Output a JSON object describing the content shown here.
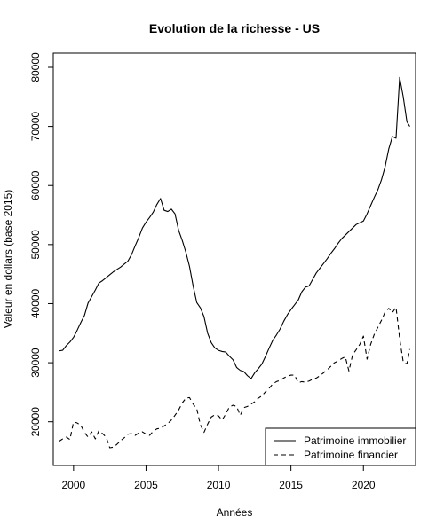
{
  "chart_data": {
    "type": "line",
    "title": "Evolution de la richesse -  US",
    "xlabel": "Années",
    "ylabel": "Valeur en dollars (base 2015)",
    "xlim": [
      1999,
      2023.2
    ],
    "ylim": [
      15000,
      80000
    ],
    "x_ticks": [
      2000,
      2005,
      2010,
      2015,
      2020
    ],
    "y_ticks": [
      20000,
      30000,
      40000,
      50000,
      60000,
      70000,
      80000
    ],
    "grid": false,
    "legend_position": "bottom-right",
    "series": [
      {
        "name": "Patrimoine immobilier",
        "style": "solid",
        "color": "#000000",
        "points": [
          [
            1999.0,
            32000
          ],
          [
            1999.25,
            32100
          ],
          [
            1999.5,
            32900
          ],
          [
            1999.75,
            33500
          ],
          [
            2000.0,
            34300
          ],
          [
            2000.25,
            35500
          ],
          [
            2000.5,
            36800
          ],
          [
            2000.75,
            38000
          ],
          [
            2001.0,
            40100
          ],
          [
            2001.25,
            41200
          ],
          [
            2001.5,
            42300
          ],
          [
            2001.75,
            43500
          ],
          [
            2002.0,
            43900
          ],
          [
            2002.25,
            44400
          ],
          [
            2002.5,
            44900
          ],
          [
            2002.75,
            45400
          ],
          [
            2003.0,
            45800
          ],
          [
            2003.25,
            46200
          ],
          [
            2003.5,
            46700
          ],
          [
            2003.75,
            47200
          ],
          [
            2004.0,
            48300
          ],
          [
            2004.25,
            49800
          ],
          [
            2004.5,
            51200
          ],
          [
            2004.75,
            52800
          ],
          [
            2005.0,
            53800
          ],
          [
            2005.25,
            54600
          ],
          [
            2005.5,
            55500
          ],
          [
            2005.75,
            56800
          ],
          [
            2006.0,
            57800
          ],
          [
            2006.25,
            55800
          ],
          [
            2006.5,
            55600
          ],
          [
            2006.75,
            56000
          ],
          [
            2007.0,
            55200
          ],
          [
            2007.25,
            52400
          ],
          [
            2007.5,
            50700
          ],
          [
            2007.75,
            48700
          ],
          [
            2008.0,
            46300
          ],
          [
            2008.25,
            43000
          ],
          [
            2008.5,
            40200
          ],
          [
            2008.75,
            39300
          ],
          [
            2009.0,
            37800
          ],
          [
            2009.25,
            35000
          ],
          [
            2009.5,
            33400
          ],
          [
            2009.75,
            32500
          ],
          [
            2010.0,
            32100
          ],
          [
            2010.25,
            31900
          ],
          [
            2010.5,
            31800
          ],
          [
            2010.75,
            31100
          ],
          [
            2011.0,
            30500
          ],
          [
            2011.25,
            29200
          ],
          [
            2011.5,
            28700
          ],
          [
            2011.75,
            28500
          ],
          [
            2012.0,
            27800
          ],
          [
            2012.25,
            27300
          ],
          [
            2012.5,
            28300
          ],
          [
            2012.75,
            29000
          ],
          [
            2013.0,
            29800
          ],
          [
            2013.25,
            31100
          ],
          [
            2013.5,
            32500
          ],
          [
            2013.75,
            33800
          ],
          [
            2014.0,
            34700
          ],
          [
            2014.25,
            35700
          ],
          [
            2014.5,
            37000
          ],
          [
            2014.75,
            38100
          ],
          [
            2015.0,
            39000
          ],
          [
            2015.25,
            39800
          ],
          [
            2015.5,
            40600
          ],
          [
            2015.75,
            42000
          ],
          [
            2016.0,
            42800
          ],
          [
            2016.25,
            43000
          ],
          [
            2016.5,
            44100
          ],
          [
            2016.75,
            45200
          ],
          [
            2017.0,
            46000
          ],
          [
            2017.25,
            46800
          ],
          [
            2017.5,
            47600
          ],
          [
            2017.75,
            48500
          ],
          [
            2018.0,
            49300
          ],
          [
            2018.25,
            50200
          ],
          [
            2018.5,
            51000
          ],
          [
            2018.75,
            51600
          ],
          [
            2019.0,
            52200
          ],
          [
            2019.25,
            52800
          ],
          [
            2019.5,
            53400
          ],
          [
            2019.75,
            53700
          ],
          [
            2020.0,
            54000
          ],
          [
            2020.25,
            55200
          ],
          [
            2020.5,
            56600
          ],
          [
            2020.75,
            58000
          ],
          [
            2021.0,
            59300
          ],
          [
            2021.25,
            61000
          ],
          [
            2021.5,
            63200
          ],
          [
            2021.75,
            66200
          ],
          [
            2022.0,
            68300
          ],
          [
            2022.25,
            68000
          ],
          [
            2022.5,
            78300
          ],
          [
            2022.75,
            75000
          ],
          [
            2023.0,
            70800
          ],
          [
            2023.2,
            70000
          ]
        ]
      },
      {
        "name": "Patrimoine financier",
        "style": "dashed",
        "color": "#000000",
        "points": [
          [
            1999.0,
            16700
          ],
          [
            1999.25,
            17100
          ],
          [
            1999.5,
            17400
          ],
          [
            1999.75,
            17000
          ],
          [
            2000.0,
            20000
          ],
          [
            2000.25,
            19800
          ],
          [
            2000.5,
            19400
          ],
          [
            2000.75,
            18200
          ],
          [
            2001.0,
            17400
          ],
          [
            2001.25,
            18300
          ],
          [
            2001.5,
            17100
          ],
          [
            2001.75,
            18500
          ],
          [
            2002.0,
            18000
          ],
          [
            2002.25,
            17400
          ],
          [
            2002.5,
            15600
          ],
          [
            2002.75,
            15700
          ],
          [
            2003.0,
            16200
          ],
          [
            2003.25,
            16800
          ],
          [
            2003.5,
            17300
          ],
          [
            2003.75,
            17900
          ],
          [
            2004.0,
            18000
          ],
          [
            2004.25,
            17700
          ],
          [
            2004.5,
            18100
          ],
          [
            2004.75,
            18300
          ],
          [
            2005.0,
            17900
          ],
          [
            2005.25,
            17700
          ],
          [
            2005.5,
            18400
          ],
          [
            2005.75,
            18800
          ],
          [
            2006.0,
            18900
          ],
          [
            2006.25,
            19300
          ],
          [
            2006.5,
            19700
          ],
          [
            2006.75,
            20300
          ],
          [
            2007.0,
            21100
          ],
          [
            2007.25,
            22000
          ],
          [
            2007.5,
            23200
          ],
          [
            2007.75,
            24000
          ],
          [
            2008.0,
            24100
          ],
          [
            2008.25,
            23000
          ],
          [
            2008.5,
            22200
          ],
          [
            2008.75,
            19500
          ],
          [
            2009.0,
            18200
          ],
          [
            2009.25,
            19600
          ],
          [
            2009.5,
            20800
          ],
          [
            2009.75,
            21200
          ],
          [
            2010.0,
            21000
          ],
          [
            2010.25,
            20300
          ],
          [
            2010.5,
            21300
          ],
          [
            2010.75,
            22500
          ],
          [
            2011.0,
            22800
          ],
          [
            2011.25,
            22600
          ],
          [
            2011.5,
            21100
          ],
          [
            2011.75,
            22400
          ],
          [
            2012.0,
            22600
          ],
          [
            2012.25,
            23000
          ],
          [
            2012.5,
            23400
          ],
          [
            2012.75,
            24000
          ],
          [
            2013.0,
            24400
          ],
          [
            2013.25,
            25100
          ],
          [
            2013.5,
            25700
          ],
          [
            2013.75,
            26400
          ],
          [
            2014.0,
            26800
          ],
          [
            2014.25,
            27000
          ],
          [
            2014.5,
            27400
          ],
          [
            2014.75,
            27700
          ],
          [
            2015.0,
            27900
          ],
          [
            2015.25,
            27900
          ],
          [
            2015.5,
            26600
          ],
          [
            2015.75,
            26800
          ],
          [
            2016.0,
            26700
          ],
          [
            2016.25,
            26900
          ],
          [
            2016.5,
            27200
          ],
          [
            2016.75,
            27400
          ],
          [
            2017.0,
            27800
          ],
          [
            2017.25,
            28300
          ],
          [
            2017.5,
            28800
          ],
          [
            2017.75,
            29400
          ],
          [
            2018.0,
            30000
          ],
          [
            2018.25,
            30300
          ],
          [
            2018.5,
            30700
          ],
          [
            2018.75,
            31000
          ],
          [
            2019.0,
            28600
          ],
          [
            2019.25,
            31300
          ],
          [
            2019.5,
            32200
          ],
          [
            2019.75,
            33100
          ],
          [
            2020.0,
            34500
          ],
          [
            2020.25,
            30600
          ],
          [
            2020.5,
            33100
          ],
          [
            2020.75,
            34800
          ],
          [
            2021.0,
            36000
          ],
          [
            2021.25,
            37200
          ],
          [
            2021.5,
            38600
          ],
          [
            2021.75,
            39200
          ],
          [
            2022.0,
            38500
          ],
          [
            2022.25,
            39400
          ],
          [
            2022.5,
            34100
          ],
          [
            2022.75,
            30100
          ],
          [
            2023.0,
            29800
          ],
          [
            2023.2,
            32300
          ]
        ]
      }
    ]
  }
}
